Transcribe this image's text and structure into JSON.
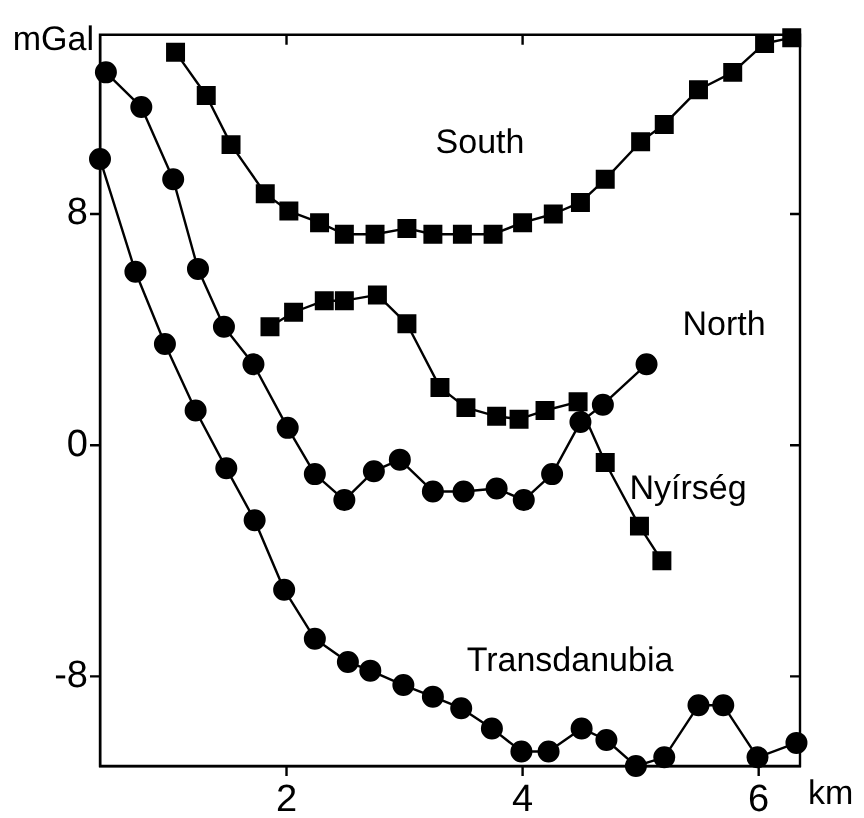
{
  "chart_data": {
    "type": "line",
    "xlabel": "km",
    "ylabel": "mGal",
    "xlim": [
      0.42,
      6.35
    ],
    "ylim": [
      -11.1,
      14.2
    ],
    "xticks": [
      2,
      4,
      6
    ],
    "yticks": [
      -8,
      0,
      8
    ],
    "grid": false,
    "legend": false,
    "line_style": "solid",
    "series": [
      {
        "name": "South",
        "color": "#000000",
        "marker": "square",
        "x": [
          1.06,
          1.32,
          1.53,
          1.82,
          2.02,
          2.28,
          2.49,
          2.75,
          3.02,
          3.24,
          3.49,
          3.75,
          4.0,
          4.26,
          4.49,
          4.7,
          5.0,
          5.2,
          5.49,
          5.78,
          6.05,
          6.28
        ],
        "values": [
          13.6,
          12.1,
          10.4,
          8.7,
          8.1,
          7.7,
          7.3,
          7.3,
          7.5,
          7.3,
          7.3,
          7.3,
          7.7,
          8.0,
          8.4,
          9.2,
          10.5,
          11.1,
          12.3,
          12.9,
          13.9,
          14.1
        ]
      },
      {
        "name": "Nyírség",
        "color": "#000000",
        "marker": "square",
        "x": [
          1.86,
          2.06,
          2.32,
          2.49,
          2.77,
          3.02,
          3.3,
          3.52,
          3.78,
          3.97,
          4.19,
          4.47,
          4.7,
          4.99,
          5.18
        ],
        "values": [
          4.1,
          4.6,
          5.0,
          5.0,
          5.2,
          4.2,
          2.0,
          1.3,
          1.0,
          0.9,
          1.2,
          1.5,
          -0.6,
          -2.8,
          -4.0
        ]
      },
      {
        "name": "North",
        "color": "#000000",
        "marker": "circle",
        "x": [
          0.47,
          0.77,
          1.04,
          1.25,
          1.47,
          1.72,
          2.01,
          2.24,
          2.49,
          2.74,
          2.96,
          3.24,
          3.5,
          3.78,
          4.01,
          4.25,
          4.49,
          4.68,
          5.05
        ],
        "values": [
          12.9,
          11.7,
          9.2,
          6.1,
          4.1,
          2.8,
          0.6,
          -1.0,
          -1.9,
          -0.9,
          -0.5,
          -1.6,
          -1.6,
          -1.5,
          -1.9,
          -1.0,
          0.8,
          1.4,
          2.8
        ]
      },
      {
        "name": "Transdanubia",
        "color": "#000000",
        "marker": "circle",
        "x": [
          0.42,
          0.72,
          0.97,
          1.23,
          1.49,
          1.73,
          1.98,
          2.24,
          2.52,
          2.71,
          2.99,
          3.24,
          3.48,
          3.74,
          3.99,
          4.22,
          4.5,
          4.71,
          4.96,
          5.2,
          5.49,
          5.7,
          5.99,
          6.32
        ],
        "values": [
          9.9,
          6.0,
          3.5,
          1.2,
          -0.8,
          -2.6,
          -5.0,
          -6.7,
          -7.5,
          -7.8,
          -8.3,
          -8.7,
          -9.1,
          -9.8,
          -10.6,
          -10.6,
          -9.8,
          -10.2,
          -11.1,
          -10.8,
          -9.0,
          -9.0,
          -10.8,
          -10.3
        ]
      }
    ]
  }
}
